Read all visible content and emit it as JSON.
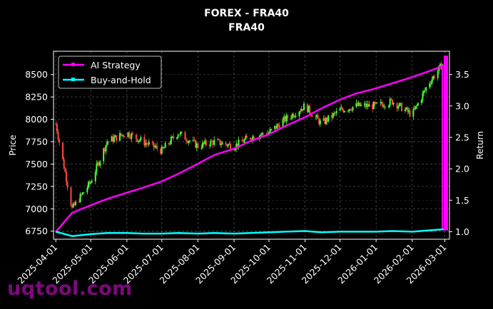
{
  "chart_data": {
    "type": "candlestick+line",
    "title": "FOREX - FRA40",
    "subtitle": "FRA40",
    "xlabel": "",
    "ylabel_left": "Price",
    "ylabel_right": "Return",
    "x_ticks": [
      "2025-04-01",
      "2025-05-01",
      "2025-06-01",
      "2025-07-01",
      "2025-08-01",
      "2025-09-01",
      "2025-10-01",
      "2025-11-01",
      "2025-12-01",
      "2026-01-01",
      "2026-02-01",
      "2026-03-01"
    ],
    "y_left_ticks": [
      6750,
      7000,
      7250,
      7500,
      7750,
      8000,
      8250,
      8500
    ],
    "y_left_range": [
      6660,
      8760
    ],
    "y_right_ticks": [
      1.0,
      1.5,
      2.0,
      2.5,
      3.0,
      3.5
    ],
    "y_right_range": [
      0.88,
      3.87
    ],
    "grid": true,
    "legend_position": "upper left",
    "legend": [
      {
        "name": "AI Strategy",
        "color": "#ff00ff"
      },
      {
        "name": "Buy-and-Hold",
        "color": "#00ffff"
      }
    ],
    "series": [
      {
        "name": "Price (candles, approx monthly close)",
        "axis": "left",
        "x": [
          "2025-04-01",
          "2025-04-15",
          "2025-05-01",
          "2025-05-15",
          "2025-06-01",
          "2025-06-15",
          "2025-07-01",
          "2025-07-15",
          "2025-08-01",
          "2025-08-15",
          "2025-09-01",
          "2025-09-15",
          "2025-10-01",
          "2025-10-15",
          "2025-11-01",
          "2025-11-15",
          "2025-12-01",
          "2025-12-15",
          "2026-01-01",
          "2026-01-15",
          "2026-02-01",
          "2026-02-15",
          "2026-03-01"
        ],
        "values": [
          7950,
          7000,
          7300,
          7750,
          7850,
          7750,
          7650,
          7850,
          7700,
          7750,
          7700,
          7800,
          7850,
          8000,
          8150,
          7950,
          8100,
          8150,
          8150,
          8200,
          8050,
          8400,
          8650
        ]
      },
      {
        "name": "AI Strategy",
        "axis": "right",
        "x": [
          "2025-04-01",
          "2025-04-15",
          "2025-05-01",
          "2025-05-15",
          "2025-06-01",
          "2025-06-15",
          "2025-07-01",
          "2025-07-15",
          "2025-08-01",
          "2025-08-15",
          "2025-09-01",
          "2025-09-15",
          "2025-10-01",
          "2025-10-15",
          "2025-11-01",
          "2025-11-15",
          "2025-12-01",
          "2025-12-15",
          "2026-01-01",
          "2026-01-15",
          "2026-02-01",
          "2026-02-15",
          "2026-03-01"
        ],
        "values": [
          1.0,
          1.3,
          1.42,
          1.52,
          1.62,
          1.7,
          1.8,
          1.92,
          2.08,
          2.22,
          2.32,
          2.44,
          2.55,
          2.68,
          2.82,
          2.96,
          3.1,
          3.2,
          3.28,
          3.36,
          3.46,
          3.55,
          3.65
        ]
      },
      {
        "name": "Buy-and-Hold",
        "axis": "right",
        "x": [
          "2025-04-01",
          "2025-04-15",
          "2025-05-01",
          "2025-05-15",
          "2025-06-01",
          "2025-06-15",
          "2025-07-01",
          "2025-07-15",
          "2025-08-01",
          "2025-08-15",
          "2025-09-01",
          "2025-09-15",
          "2025-10-01",
          "2025-10-15",
          "2025-11-01",
          "2025-11-15",
          "2025-12-01",
          "2025-12-15",
          "2026-01-01",
          "2026-01-15",
          "2026-02-01",
          "2026-02-15",
          "2026-03-01"
        ],
        "values": [
          1.0,
          0.93,
          0.96,
          0.98,
          0.98,
          0.97,
          0.97,
          0.98,
          0.97,
          0.98,
          0.97,
          0.98,
          0.99,
          1.0,
          1.01,
          0.99,
          1.0,
          1.0,
          1.0,
          1.01,
          1.0,
          1.02,
          1.04
        ]
      }
    ]
  },
  "header": {
    "title": "FOREX - FRA40",
    "subtitle": "FRA40"
  },
  "axes": {
    "ylabel_left": "Price",
    "ylabel_right": "Return"
  },
  "legend": {
    "items": [
      {
        "label": "AI Strategy",
        "color": "#ff00ff"
      },
      {
        "label": "Buy-and-Hold",
        "color": "#00ffff"
      }
    ]
  },
  "colors": {
    "up_candle": "#4cff3a",
    "down_candle": "#ff4a3a",
    "grid": "#555555",
    "axes": "#ffffff",
    "background": "#000000"
  },
  "watermark": "uqtool.com"
}
